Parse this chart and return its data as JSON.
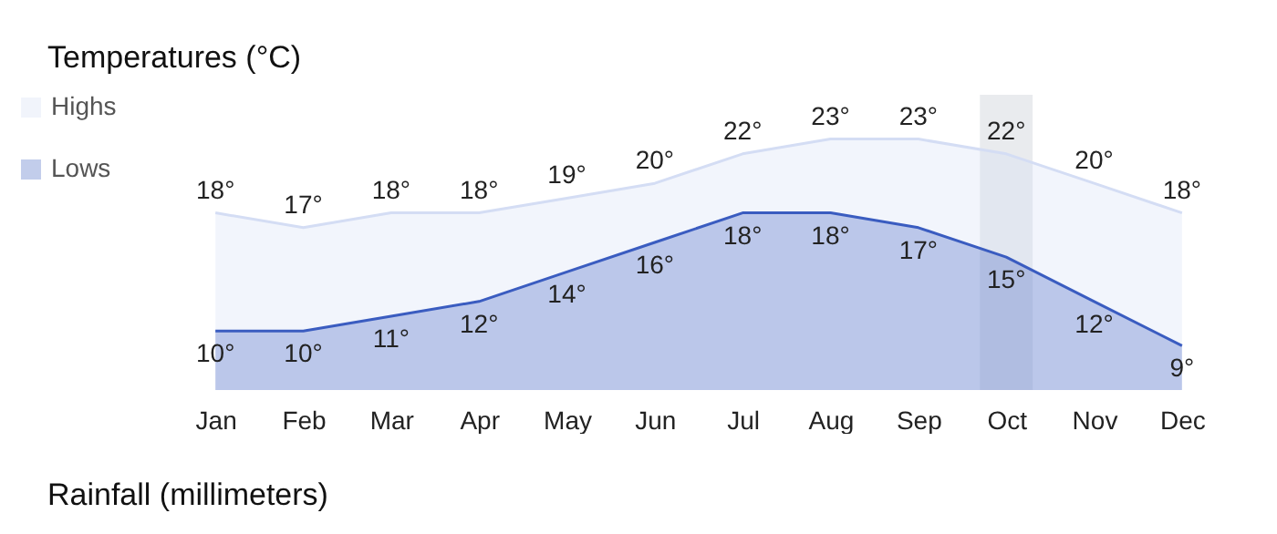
{
  "chart_data": {
    "type": "area",
    "title": "Temperatures (°C)",
    "categories": [
      "Jan",
      "Feb",
      "Mar",
      "Apr",
      "May",
      "Jun",
      "Jul",
      "Aug",
      "Sep",
      "Oct",
      "Nov",
      "Dec"
    ],
    "series": [
      {
        "name": "Highs",
        "color": "#d4ddf4",
        "values": [
          18,
          17,
          18,
          18,
          19,
          20,
          22,
          23,
          23,
          22,
          20,
          18
        ],
        "value_labels": [
          "18°",
          "17°",
          "18°",
          "18°",
          "19°",
          "20°",
          "22°",
          "23°",
          "23°",
          "22°",
          "20°",
          "18°"
        ]
      },
      {
        "name": "Lows",
        "color": "#3a5cc0",
        "values": [
          10,
          10,
          11,
          12,
          14,
          16,
          18,
          18,
          17,
          15,
          12,
          9
        ],
        "value_labels": [
          "10°",
          "10°",
          "11°",
          "12°",
          "14°",
          "16°",
          "18°",
          "18°",
          "17°",
          "15°",
          "12°",
          "9°"
        ]
      }
    ],
    "bands": [
      {
        "axis": "x",
        "from": "Oct",
        "to": "Oct",
        "color": "#e4e6ea"
      }
    ],
    "legend": "left",
    "tick_labels": "x",
    "grid": false,
    "annotations": [
      "Rainfall (millimeters)"
    ]
  }
}
